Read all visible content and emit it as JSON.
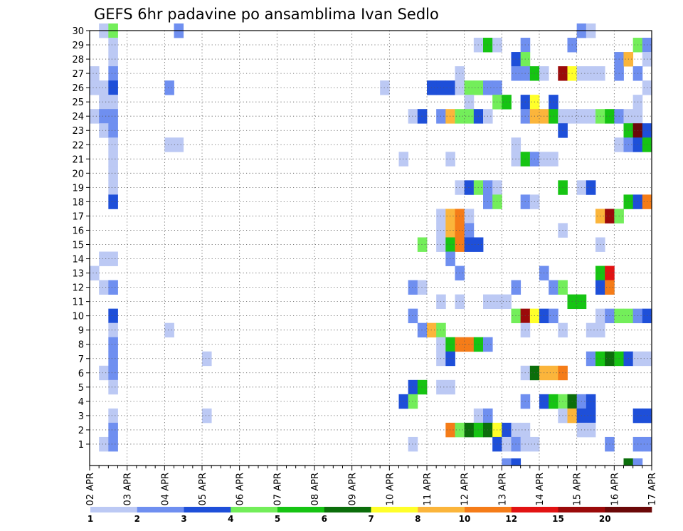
{
  "chart_data": {
    "type": "heatmap",
    "title": "GEFS 6hr padavine po ansamblima Ivan Sedlo",
    "xlabel": "",
    "ylabel": "",
    "x_tick_labels": [
      "02 APR",
      "03 APR",
      "04 APR",
      "05 APR",
      "06 APR",
      "07 APR",
      "08 APR",
      "09 APR",
      "10 APR",
      "11 APR",
      "12 APR",
      "13 APR",
      "14 APR",
      "15 APR",
      "16 APR",
      "17 APR"
    ],
    "y_tick_labels": [
      "1",
      "2",
      "3",
      "4",
      "5",
      "6",
      "7",
      "8",
      "9",
      "10",
      "11",
      "12",
      "13",
      "14",
      "15",
      "16",
      "17",
      "18",
      "19",
      "20",
      "21",
      "22",
      "23",
      "24",
      "25",
      "26",
      "27",
      "28",
      "29",
      "30"
    ],
    "x_steps_per_day": 4,
    "x_steps_total": 60,
    "y_members": 30,
    "grid": true,
    "colorbar": {
      "labels": [
        "1",
        "2",
        "3",
        "4",
        "5",
        "6",
        "7",
        "8",
        "10",
        "12",
        "15",
        "20"
      ],
      "colors": [
        "#bcc9f4",
        "#6f8ff0",
        "#1e4fd9",
        "#73ee5a",
        "#16c413",
        "#0b6e0b",
        "#ffff2a",
        "#fbb53b",
        "#f57c18",
        "#e21313",
        "#9b0a0a",
        "#6b0808"
      ]
    },
    "cells": [
      [
        1,
        30,
        0
      ],
      [
        2,
        30,
        3
      ],
      [
        9,
        30,
        1
      ],
      [
        52,
        30,
        1
      ],
      [
        53,
        30,
        0
      ],
      [
        2,
        29,
        0
      ],
      [
        41,
        29,
        0
      ],
      [
        42,
        29,
        4
      ],
      [
        43,
        29,
        0
      ],
      [
        46,
        29,
        1
      ],
      [
        51,
        29,
        1
      ],
      [
        58,
        29,
        3
      ],
      [
        59,
        29,
        1
      ],
      [
        2,
        28,
        0
      ],
      [
        45,
        28,
        2
      ],
      [
        46,
        28,
        3
      ],
      [
        56,
        28,
        1
      ],
      [
        57,
        28,
        7
      ],
      [
        59,
        28,
        0
      ],
      [
        0,
        27,
        0
      ],
      [
        2,
        27,
        1
      ],
      [
        39,
        27,
        0
      ],
      [
        45,
        27,
        1
      ],
      [
        46,
        27,
        1
      ],
      [
        47,
        27,
        4
      ],
      [
        48,
        27,
        0
      ],
      [
        50,
        27,
        10
      ],
      [
        51,
        27,
        6
      ],
      [
        52,
        27,
        0
      ],
      [
        53,
        27,
        0
      ],
      [
        54,
        27,
        0
      ],
      [
        56,
        27,
        1
      ],
      [
        58,
        27,
        1
      ],
      [
        0,
        26,
        0
      ],
      [
        1,
        26,
        0
      ],
      [
        2,
        26,
        2
      ],
      [
        8,
        26,
        1
      ],
      [
        31,
        26,
        0
      ],
      [
        36,
        26,
        2
      ],
      [
        37,
        26,
        2
      ],
      [
        38,
        26,
        2
      ],
      [
        39,
        26,
        0
      ],
      [
        40,
        26,
        3
      ],
      [
        41,
        26,
        3
      ],
      [
        42,
        26,
        1
      ],
      [
        43,
        26,
        1
      ],
      [
        59,
        26,
        0
      ],
      [
        1,
        25,
        0
      ],
      [
        2,
        25,
        0
      ],
      [
        40,
        25,
        0
      ],
      [
        43,
        25,
        3
      ],
      [
        44,
        25,
        4
      ],
      [
        46,
        25,
        2
      ],
      [
        47,
        25,
        6
      ],
      [
        49,
        25,
        2
      ],
      [
        58,
        25,
        0
      ],
      [
        0,
        24,
        0
      ],
      [
        1,
        24,
        1
      ],
      [
        2,
        24,
        1
      ],
      [
        34,
        24,
        0
      ],
      [
        35,
        24,
        2
      ],
      [
        37,
        24,
        1
      ],
      [
        38,
        24,
        7
      ],
      [
        39,
        24,
        3
      ],
      [
        40,
        24,
        3
      ],
      [
        41,
        24,
        2
      ],
      [
        42,
        24,
        0
      ],
      [
        46,
        24,
        1
      ],
      [
        47,
        24,
        7
      ],
      [
        48,
        24,
        7
      ],
      [
        49,
        24,
        4
      ],
      [
        50,
        24,
        0
      ],
      [
        51,
        24,
        0
      ],
      [
        52,
        24,
        0
      ],
      [
        53,
        24,
        0
      ],
      [
        54,
        24,
        3
      ],
      [
        55,
        24,
        4
      ],
      [
        56,
        24,
        1
      ],
      [
        57,
        24,
        0
      ],
      [
        58,
        24,
        0
      ],
      [
        1,
        23,
        0
      ],
      [
        2,
        23,
        1
      ],
      [
        50,
        23,
        2
      ],
      [
        57,
        23,
        4
      ],
      [
        58,
        23,
        11
      ],
      [
        59,
        23,
        2
      ],
      [
        2,
        22,
        0
      ],
      [
        8,
        22,
        0
      ],
      [
        9,
        22,
        0
      ],
      [
        45,
        22,
        0
      ],
      [
        56,
        22,
        0
      ],
      [
        57,
        22,
        1
      ],
      [
        58,
        22,
        2
      ],
      [
        59,
        22,
        4
      ],
      [
        2,
        21,
        0
      ],
      [
        33,
        21,
        0
      ],
      [
        38,
        21,
        0
      ],
      [
        45,
        21,
        0
      ],
      [
        46,
        21,
        4
      ],
      [
        47,
        21,
        1
      ],
      [
        48,
        21,
        0
      ],
      [
        49,
        21,
        0
      ],
      [
        2,
        20,
        0
      ],
      [
        2,
        19,
        0
      ],
      [
        39,
        19,
        0
      ],
      [
        40,
        19,
        2
      ],
      [
        41,
        19,
        3
      ],
      [
        42,
        19,
        1
      ],
      [
        43,
        19,
        0
      ],
      [
        50,
        19,
        4
      ],
      [
        52,
        19,
        0
      ],
      [
        53,
        19,
        2
      ],
      [
        2,
        18,
        2
      ],
      [
        42,
        18,
        1
      ],
      [
        43,
        18,
        3
      ],
      [
        46,
        18,
        1
      ],
      [
        47,
        18,
        0
      ],
      [
        57,
        18,
        4
      ],
      [
        58,
        18,
        2
      ],
      [
        59,
        18,
        8
      ],
      [
        37,
        17,
        0
      ],
      [
        38,
        17,
        7
      ],
      [
        39,
        17,
        8
      ],
      [
        40,
        17,
        0
      ],
      [
        54,
        17,
        7
      ],
      [
        55,
        17,
        10
      ],
      [
        56,
        17,
        3
      ],
      [
        37,
        16,
        0
      ],
      [
        38,
        16,
        7
      ],
      [
        39,
        16,
        8
      ],
      [
        40,
        16,
        1
      ],
      [
        50,
        16,
        0
      ],
      [
        35,
        15,
        3
      ],
      [
        37,
        15,
        0
      ],
      [
        38,
        15,
        4
      ],
      [
        39,
        15,
        8
      ],
      [
        40,
        15,
        2
      ],
      [
        41,
        15,
        2
      ],
      [
        54,
        15,
        0
      ],
      [
        1,
        14,
        0
      ],
      [
        2,
        14,
        0
      ],
      [
        38,
        14,
        1
      ],
      [
        0,
        13,
        0
      ],
      [
        39,
        13,
        1
      ],
      [
        48,
        13,
        1
      ],
      [
        54,
        13,
        4
      ],
      [
        55,
        13,
        9
      ],
      [
        1,
        12,
        0
      ],
      [
        2,
        12,
        1
      ],
      [
        34,
        12,
        1
      ],
      [
        35,
        12,
        0
      ],
      [
        45,
        12,
        1
      ],
      [
        49,
        12,
        1
      ],
      [
        50,
        12,
        3
      ],
      [
        54,
        12,
        2
      ],
      [
        55,
        12,
        8
      ],
      [
        37,
        11,
        0
      ],
      [
        39,
        11,
        0
      ],
      [
        42,
        11,
        0
      ],
      [
        43,
        11,
        0
      ],
      [
        44,
        11,
        0
      ],
      [
        51,
        11,
        4
      ],
      [
        52,
        11,
        4
      ],
      [
        2,
        10,
        2
      ],
      [
        34,
        10,
        1
      ],
      [
        45,
        10,
        3
      ],
      [
        46,
        10,
        10
      ],
      [
        47,
        10,
        6
      ],
      [
        48,
        10,
        2
      ],
      [
        49,
        10,
        1
      ],
      [
        54,
        10,
        0
      ],
      [
        55,
        10,
        1
      ],
      [
        56,
        10,
        3
      ],
      [
        57,
        10,
        3
      ],
      [
        58,
        10,
        1
      ],
      [
        59,
        10,
        2
      ],
      [
        2,
        9,
        0
      ],
      [
        8,
        9,
        0
      ],
      [
        35,
        9,
        1
      ],
      [
        36,
        9,
        7
      ],
      [
        37,
        9,
        3
      ],
      [
        46,
        9,
        0
      ],
      [
        50,
        9,
        0
      ],
      [
        53,
        9,
        0
      ],
      [
        54,
        9,
        0
      ],
      [
        2,
        8,
        1
      ],
      [
        37,
        8,
        0
      ],
      [
        38,
        8,
        4
      ],
      [
        39,
        8,
        8
      ],
      [
        40,
        8,
        8
      ],
      [
        41,
        8,
        4
      ],
      [
        42,
        8,
        1
      ],
      [
        2,
        7,
        1
      ],
      [
        12,
        7,
        0
      ],
      [
        37,
        7,
        0
      ],
      [
        38,
        7,
        2
      ],
      [
        53,
        7,
        1
      ],
      [
        54,
        7,
        4
      ],
      [
        55,
        7,
        5
      ],
      [
        56,
        7,
        4
      ],
      [
        57,
        7,
        2
      ],
      [
        58,
        7,
        0
      ],
      [
        59,
        7,
        0
      ],
      [
        1,
        6,
        0
      ],
      [
        2,
        6,
        1
      ],
      [
        46,
        6,
        0
      ],
      [
        47,
        6,
        5
      ],
      [
        48,
        6,
        7
      ],
      [
        49,
        6,
        7
      ],
      [
        50,
        6,
        8
      ],
      [
        2,
        5,
        0
      ],
      [
        34,
        5,
        2
      ],
      [
        35,
        5,
        4
      ],
      [
        37,
        5,
        0
      ],
      [
        38,
        5,
        0
      ],
      [
        33,
        4,
        2
      ],
      [
        34,
        4,
        3
      ],
      [
        46,
        4,
        1
      ],
      [
        48,
        4,
        2
      ],
      [
        49,
        4,
        4
      ],
      [
        50,
        4,
        3
      ],
      [
        51,
        4,
        5
      ],
      [
        52,
        4,
        1
      ],
      [
        53,
        4,
        2
      ],
      [
        2,
        3,
        0
      ],
      [
        12,
        3,
        0
      ],
      [
        41,
        3,
        0
      ],
      [
        42,
        3,
        1
      ],
      [
        50,
        3,
        0
      ],
      [
        51,
        3,
        7
      ],
      [
        52,
        3,
        2
      ],
      [
        53,
        3,
        2
      ],
      [
        58,
        3,
        2
      ],
      [
        59,
        3,
        2
      ],
      [
        2,
        2,
        1
      ],
      [
        38,
        2,
        8
      ],
      [
        39,
        2,
        3
      ],
      [
        40,
        2,
        5
      ],
      [
        41,
        2,
        4
      ],
      [
        42,
        2,
        5
      ],
      [
        43,
        2,
        6
      ],
      [
        44,
        2,
        2
      ],
      [
        45,
        2,
        0
      ],
      [
        46,
        2,
        0
      ],
      [
        52,
        2,
        0
      ],
      [
        53,
        2,
        0
      ],
      [
        1,
        1,
        0
      ],
      [
        2,
        1,
        1
      ],
      [
        34,
        1,
        0
      ],
      [
        43,
        1,
        2
      ],
      [
        44,
        1,
        0
      ],
      [
        45,
        1,
        1
      ],
      [
        46,
        1,
        0
      ],
      [
        47,
        1,
        0
      ],
      [
        55,
        1,
        1
      ],
      [
        58,
        1,
        1
      ],
      [
        59,
        1,
        1
      ],
      [
        44,
        0,
        1
      ],
      [
        45,
        0,
        2
      ],
      [
        57,
        0,
        5
      ],
      [
        58,
        0,
        1
      ]
    ]
  }
}
